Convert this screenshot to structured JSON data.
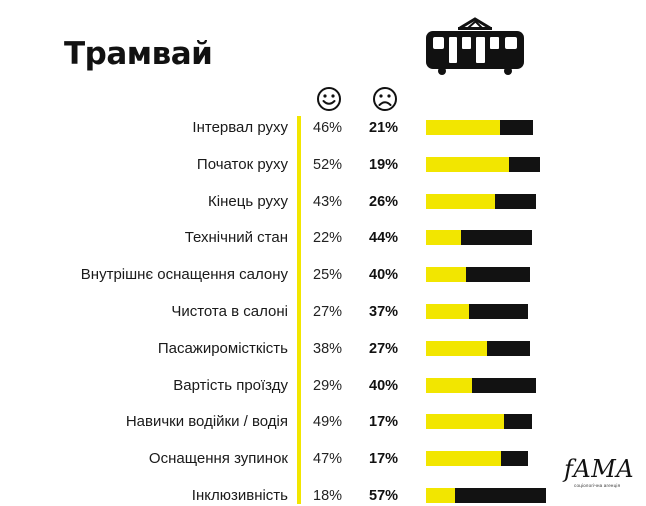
{
  "title": "Трамвай",
  "icons": {
    "vehicle": "tram-icon",
    "positive": "smiling-face-icon",
    "negative": "frowning-face-icon"
  },
  "colors": {
    "positive": "#f2e600",
    "negative": "#121212",
    "divider": "#f2e600"
  },
  "logo": {
    "text": "fAMA",
    "subtitle": "соціологічна агенція"
  },
  "chart_data": {
    "type": "bar",
    "orientation": "horizontal",
    "stacked": true,
    "xlim": [
      0,
      100
    ],
    "categories": [
      "Інтервал руху",
      "Початок руху",
      "Кінець руху",
      "Технічний стан",
      "Внутрішнє оснащення салону",
      "Чистота в салоні",
      "Пасажиромісткість",
      "Вартість проїзду",
      "Навички водійки / водія",
      "Оснащення зупинок",
      "Інклюзивність"
    ],
    "series": [
      {
        "values": [
          46,
          52,
          43,
          22,
          25,
          27,
          38,
          29,
          49,
          47,
          18
        ]
      },
      {
        "values": [
          21,
          19,
          26,
          44,
          40,
          37,
          27,
          40,
          17,
          17,
          57
        ]
      }
    ],
    "value_labels": {
      "positive": [
        "46%",
        "52%",
        "43%",
        "22%",
        "25%",
        "27%",
        "38%",
        "29%",
        "49%",
        "47%",
        "18%"
      ],
      "negative": [
        "21%",
        "19%",
        "26%",
        "44%",
        "40%",
        "37%",
        "27%",
        "40%",
        "17%",
        "17%",
        "57%"
      ]
    },
    "grid": false,
    "legend": "none"
  }
}
